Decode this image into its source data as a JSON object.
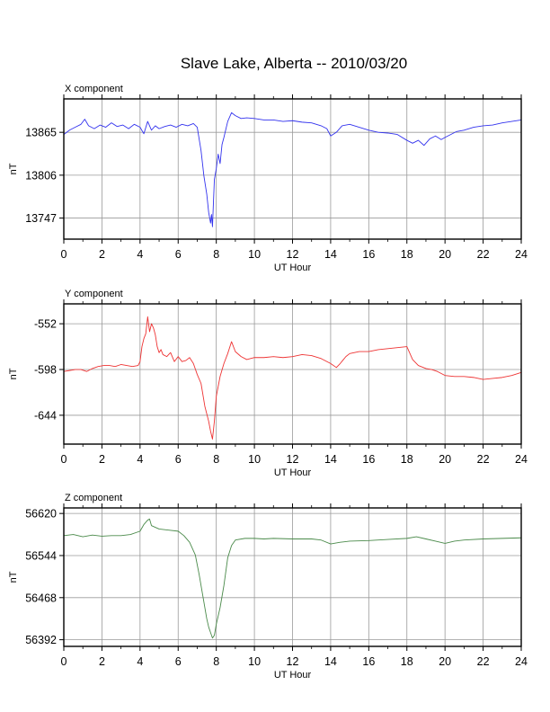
{
  "page": {
    "title": "Slave Lake, Alberta -- 2010/03/20"
  },
  "chart_data": [
    {
      "type": "line",
      "title": "X component",
      "xlabel": "UT Hour",
      "ylabel": "nT",
      "xlim": [
        0,
        24
      ],
      "ylim": [
        13718,
        13911
      ],
      "xticks": [
        0,
        2,
        4,
        6,
        8,
        10,
        12,
        14,
        16,
        18,
        20,
        22,
        24
      ],
      "yticks": [
        13747,
        13806,
        13865
      ],
      "grid": true,
      "color": "#3333ee",
      "series": [
        {
          "x": [
            0,
            0.3,
            0.6,
            0.9,
            1.1,
            1.3,
            1.6,
            1.9,
            2.2,
            2.5,
            2.8,
            3.1,
            3.4,
            3.7,
            4.0,
            4.2,
            4.4,
            4.6,
            4.8,
            5.0,
            5.3,
            5.6,
            5.9,
            6.2,
            6.5,
            6.8,
            7.0,
            7.2,
            7.35,
            7.5,
            7.6,
            7.7,
            7.75,
            7.8,
            7.85,
            7.9,
            8.0,
            8.1,
            8.2,
            8.3,
            8.4,
            8.6,
            8.8,
            9.0,
            9.3,
            9.6,
            10.0,
            10.5,
            11.0,
            11.5,
            12.0,
            12.5,
            13.0,
            13.5,
            13.8,
            14.0,
            14.3,
            14.6,
            15.0,
            15.5,
            16.0,
            16.5,
            17.0,
            17.5,
            18.0,
            18.3,
            18.6,
            18.9,
            19.2,
            19.5,
            19.8,
            20.0,
            20.3,
            20.6,
            21.0,
            21.5,
            22.0,
            22.5,
            23.0,
            23.5,
            24.0
          ],
          "y": [
            13862,
            13868,
            13872,
            13876,
            13883,
            13874,
            13870,
            13875,
            13872,
            13878,
            13873,
            13875,
            13870,
            13876,
            13872,
            13863,
            13880,
            13868,
            13874,
            13870,
            13873,
            13875,
            13872,
            13876,
            13874,
            13877,
            13872,
            13840,
            13805,
            13780,
            13755,
            13740,
            13752,
            13735,
            13768,
            13800,
            13815,
            13835,
            13822,
            13848,
            13858,
            13880,
            13892,
            13888,
            13884,
            13885,
            13884,
            13882,
            13882,
            13880,
            13881,
            13879,
            13878,
            13874,
            13870,
            13860,
            13865,
            13874,
            13876,
            13872,
            13868,
            13865,
            13864,
            13862,
            13854,
            13850,
            13854,
            13847,
            13856,
            13860,
            13855,
            13858,
            13862,
            13866,
            13868,
            13872,
            13874,
            13875,
            13878,
            13880,
            13882
          ]
        }
      ]
    },
    {
      "type": "line",
      "title": "Y component",
      "xlabel": "UT Hour",
      "ylabel": "nT",
      "xlim": [
        0,
        24
      ],
      "ylim": [
        -673,
        -532
      ],
      "xticks": [
        0,
        2,
        4,
        6,
        8,
        10,
        12,
        14,
        16,
        18,
        20,
        22,
        24
      ],
      "yticks": [
        -552,
        -598,
        -644
      ],
      "grid": true,
      "color": "#ee3333",
      "series": [
        {
          "x": [
            0,
            0.3,
            0.6,
            0.9,
            1.2,
            1.5,
            1.8,
            2.1,
            2.4,
            2.7,
            3.0,
            3.3,
            3.6,
            3.9,
            4.0,
            4.1,
            4.2,
            4.3,
            4.4,
            4.5,
            4.6,
            4.7,
            4.8,
            4.9,
            5.0,
            5.1,
            5.2,
            5.4,
            5.6,
            5.8,
            6.0,
            6.2,
            6.4,
            6.6,
            6.8,
            7.0,
            7.2,
            7.4,
            7.6,
            7.7,
            7.8,
            7.9,
            8.0,
            8.2,
            8.4,
            8.6,
            8.8,
            9.0,
            9.3,
            9.6,
            10.0,
            10.5,
            11.0,
            11.5,
            12.0,
            12.5,
            13.0,
            13.5,
            14.0,
            14.3,
            14.5,
            14.8,
            15.0,
            15.5,
            16.0,
            16.5,
            17.0,
            17.5,
            18.0,
            18.3,
            18.6,
            19.0,
            19.3,
            19.6,
            20.0,
            20.5,
            21.0,
            21.5,
            22.0,
            22.5,
            23.0,
            23.5,
            24.0
          ],
          "y": [
            -600,
            -599,
            -598,
            -598,
            -600,
            -597,
            -595,
            -594,
            -594,
            -595,
            -593,
            -594,
            -595,
            -594,
            -590,
            -575,
            -567,
            -562,
            -545,
            -560,
            -552,
            -556,
            -563,
            -575,
            -581,
            -578,
            -583,
            -585,
            -581,
            -590,
            -585,
            -590,
            -589,
            -586,
            -592,
            -603,
            -612,
            -635,
            -650,
            -660,
            -668,
            -650,
            -625,
            -605,
            -592,
            -582,
            -570,
            -580,
            -585,
            -588,
            -586,
            -586,
            -585,
            -586,
            -585,
            -583,
            -584,
            -587,
            -592,
            -596,
            -592,
            -585,
            -582,
            -580,
            -580,
            -578,
            -577,
            -576,
            -575,
            -588,
            -594,
            -597,
            -598,
            -600,
            -604,
            -605,
            -605,
            -606,
            -608,
            -607,
            -606,
            -604,
            -601
          ]
        }
      ]
    },
    {
      "type": "line",
      "title": "Z component",
      "xlabel": "UT Hour",
      "ylabel": "nT",
      "xlim": [
        0,
        24
      ],
      "ylim": [
        56380,
        56630
      ],
      "xticks": [
        0,
        2,
        4,
        6,
        8,
        10,
        12,
        14,
        16,
        18,
        20,
        22,
        24
      ],
      "yticks": [
        56392,
        56468,
        56544,
        56620
      ],
      "grid": true,
      "color": "#4a8a4a",
      "series": [
        {
          "x": [
            0,
            0.5,
            1.0,
            1.5,
            2.0,
            2.5,
            3.0,
            3.5,
            4.0,
            4.2,
            4.4,
            4.5,
            4.6,
            4.8,
            5.0,
            5.5,
            6.0,
            6.3,
            6.6,
            6.9,
            7.1,
            7.3,
            7.5,
            7.6,
            7.7,
            7.8,
            7.9,
            8.0,
            8.2,
            8.4,
            8.6,
            8.8,
            9.0,
            9.5,
            10.0,
            10.5,
            11.0,
            12.0,
            13.0,
            13.5,
            14.0,
            14.5,
            15.0,
            16.0,
            17.0,
            18.0,
            18.5,
            19.0,
            19.5,
            20.0,
            20.5,
            21.0,
            22.0,
            23.0,
            24.0
          ],
          "y": [
            56580,
            56582,
            56578,
            56581,
            56579,
            56580,
            56580,
            56582,
            56588,
            56600,
            56608,
            56610,
            56598,
            56595,
            56592,
            56590,
            56588,
            56580,
            56568,
            56545,
            56510,
            56470,
            56430,
            56415,
            56405,
            56395,
            56400,
            56420,
            56450,
            56490,
            56540,
            56562,
            56572,
            56575,
            56575,
            56574,
            56575,
            56574,
            56574,
            56572,
            56565,
            56568,
            56570,
            56571,
            56573,
            56575,
            56578,
            56574,
            56570,
            56566,
            56570,
            56572,
            56574,
            56575,
            56576
          ]
        }
      ]
    }
  ]
}
